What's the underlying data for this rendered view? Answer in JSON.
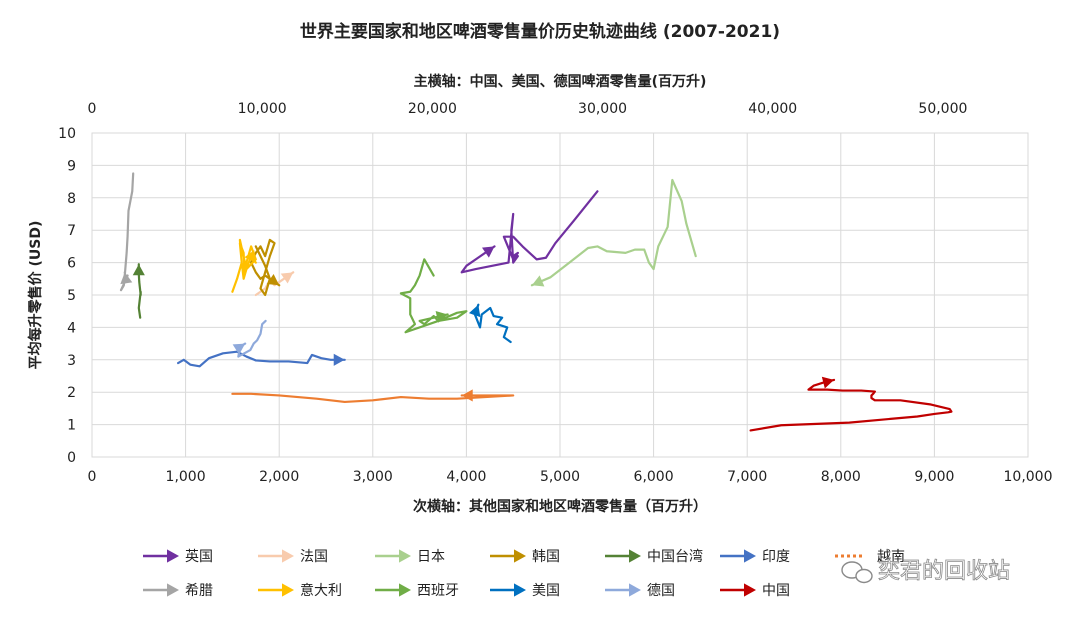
{
  "chart_data": {
    "type": "line",
    "title": "世界主要国家和地区啤酒零售量价历史轨迹曲线 (2007-2021)",
    "x2label": "主横轴：中国、美国、德国啤酒零售量(百万升)",
    "xlabel": "次横轴：其他国家和地区啤酒零售量（百万升）",
    "ylabel": "平均每升零售价 (USD)",
    "xlim": [
      0,
      10000
    ],
    "x2lim": [
      0,
      55000
    ],
    "ylim": [
      0,
      10
    ],
    "x_ticks": [
      "0",
      "1,000",
      "2,000",
      "3,000",
      "4,000",
      "5,000",
      "6,000",
      "7,000",
      "8,000",
      "9,000",
      "10,000"
    ],
    "x2_ticks": [
      "0",
      "10,000",
      "20,000",
      "30,000",
      "40,000",
      "50,000"
    ],
    "y_ticks": [
      "0",
      "1",
      "2",
      "3",
      "4",
      "5",
      "6",
      "7",
      "8",
      "9",
      "10"
    ],
    "grid": true,
    "legend_position": "bottom",
    "series": [
      {
        "name": "英国",
        "color": "#7030A0",
        "axis": "secondary",
        "points": [
          [
            5400,
            8.2
          ],
          [
            5150,
            7.3
          ],
          [
            4950,
            6.6
          ],
          [
            4850,
            6.15
          ],
          [
            4750,
            6.1
          ],
          [
            4600,
            6.5
          ],
          [
            4500,
            6.8
          ],
          [
            4400,
            6.8
          ],
          [
            4500,
            6.1
          ],
          [
            4550,
            6.3
          ],
          [
            4500,
            6.2
          ],
          [
            4550,
            6.2
          ],
          [
            4500,
            6.0
          ],
          [
            4480,
            7.0
          ],
          [
            4500,
            7.5
          ],
          [
            4450,
            6.0
          ],
          [
            4100,
            5.8
          ],
          [
            3950,
            5.7
          ],
          [
            4000,
            5.9
          ],
          [
            4150,
            6.2
          ],
          [
            4300,
            6.5
          ]
        ]
      },
      {
        "name": "法国",
        "color": "#F8CBAD",
        "axis": "secondary",
        "points": [
          [
            1750,
            5.0
          ],
          [
            1850,
            5.2
          ],
          [
            1900,
            5.45
          ],
          [
            1950,
            5.3
          ],
          [
            2000,
            5.4
          ],
          [
            2100,
            5.6
          ],
          [
            2150,
            5.7
          ]
        ]
      },
      {
        "name": "日本",
        "color": "#A9D08E",
        "axis": "secondary",
        "points": [
          [
            6450,
            6.2
          ],
          [
            6350,
            7.2
          ],
          [
            6300,
            7.9
          ],
          [
            6200,
            8.55
          ],
          [
            6150,
            7.1
          ],
          [
            6100,
            6.8
          ],
          [
            6050,
            6.5
          ],
          [
            6000,
            5.8
          ],
          [
            5950,
            6.0
          ],
          [
            5900,
            6.4
          ],
          [
            5800,
            6.4
          ],
          [
            5700,
            6.3
          ],
          [
            5500,
            6.35
          ],
          [
            5400,
            6.5
          ],
          [
            5300,
            6.45
          ],
          [
            5100,
            6.0
          ],
          [
            4900,
            5.55
          ],
          [
            4700,
            5.3
          ]
        ]
      },
      {
        "name": "韩国",
        "color": "#BF8F00",
        "axis": "secondary",
        "points": [
          [
            1750,
            6.5
          ],
          [
            1800,
            6.2
          ],
          [
            1850,
            5.9
          ],
          [
            1900,
            5.5
          ],
          [
            1850,
            5.0
          ],
          [
            1800,
            5.2
          ],
          [
            1850,
            5.7
          ],
          [
            1900,
            6.2
          ],
          [
            1950,
            6.6
          ],
          [
            1900,
            6.7
          ],
          [
            1850,
            6.2
          ],
          [
            1800,
            6.5
          ],
          [
            1750,
            6.3
          ],
          [
            1700,
            6.0
          ],
          [
            1750,
            5.7
          ],
          [
            1800,
            5.5
          ],
          [
            1850,
            5.6
          ],
          [
            1900,
            5.5
          ],
          [
            1950,
            5.4
          ],
          [
            2000,
            5.3
          ]
        ]
      },
      {
        "name": "中国台湾",
        "color": "#548235",
        "axis": "secondary",
        "points": [
          [
            515,
            4.3
          ],
          [
            500,
            4.6
          ],
          [
            520,
            5.1
          ],
          [
            520,
            5.0
          ],
          [
            505,
            5.4
          ],
          [
            500,
            5.65
          ],
          [
            500,
            5.95
          ]
        ]
      },
      {
        "name": "印度",
        "color": "#4472C4",
        "axis": "secondary",
        "points": [
          [
            920,
            2.9
          ],
          [
            980,
            3.0
          ],
          [
            1050,
            2.85
          ],
          [
            1150,
            2.8
          ],
          [
            1250,
            3.05
          ],
          [
            1400,
            3.2
          ],
          [
            1550,
            3.25
          ],
          [
            1650,
            3.1
          ],
          [
            1750,
            2.98
          ],
          [
            1900,
            2.95
          ],
          [
            2100,
            2.95
          ],
          [
            2300,
            2.9
          ],
          [
            2350,
            3.15
          ],
          [
            2450,
            3.05
          ],
          [
            2550,
            3.0
          ],
          [
            2700,
            3.0
          ]
        ]
      },
      {
        "name": "越南",
        "color": "#ED7D31",
        "axis": "secondary",
        "points": [
          [
            1500,
            1.95
          ],
          [
            1700,
            1.95
          ],
          [
            2000,
            1.9
          ],
          [
            2400,
            1.8
          ],
          [
            2700,
            1.7
          ],
          [
            3000,
            1.75
          ],
          [
            3300,
            1.85
          ],
          [
            3600,
            1.8
          ],
          [
            3900,
            1.8
          ],
          [
            4200,
            1.85
          ],
          [
            4500,
            1.9
          ],
          [
            4300,
            1.9
          ],
          [
            4050,
            1.9
          ],
          [
            3950,
            1.9
          ]
        ]
      },
      {
        "name": "希腊",
        "color": "#A5A5A5",
        "axis": "secondary",
        "points": [
          [
            440,
            8.75
          ],
          [
            430,
            8.2
          ],
          [
            410,
            7.9
          ],
          [
            390,
            7.6
          ],
          [
            380,
            6.8
          ],
          [
            370,
            6.3
          ],
          [
            350,
            5.6
          ],
          [
            340,
            5.3
          ],
          [
            310,
            5.15
          ],
          [
            350,
            5.4
          ],
          [
            380,
            5.6
          ],
          [
            360,
            5.5
          ],
          [
            350,
            5.7
          ]
        ]
      },
      {
        "name": "意大利",
        "color": "#FFC000",
        "axis": "secondary",
        "points": [
          [
            1500,
            5.1
          ],
          [
            1550,
            5.5
          ],
          [
            1600,
            6.0
          ],
          [
            1580,
            6.6
          ],
          [
            1620,
            6.3
          ],
          [
            1630,
            5.6
          ],
          [
            1650,
            6.0
          ],
          [
            1700,
            6.5
          ],
          [
            1750,
            6.1
          ],
          [
            1650,
            5.8
          ],
          [
            1580,
            6.7
          ],
          [
            1600,
            6.0
          ],
          [
            1620,
            5.5
          ],
          [
            1650,
            5.8
          ],
          [
            1700,
            6.2
          ],
          [
            1750,
            6.0
          ]
        ]
      },
      {
        "name": "西班牙",
        "color": "#70AD47",
        "axis": "secondary",
        "points": [
          [
            3650,
            5.6
          ],
          [
            3550,
            6.1
          ],
          [
            3500,
            5.6
          ],
          [
            3450,
            5.3
          ],
          [
            3400,
            5.1
          ],
          [
            3300,
            5.05
          ],
          [
            3400,
            4.9
          ],
          [
            3400,
            4.4
          ],
          [
            3450,
            4.1
          ],
          [
            3350,
            3.85
          ],
          [
            3700,
            4.2
          ],
          [
            3900,
            4.45
          ],
          [
            4000,
            4.5
          ],
          [
            3900,
            4.3
          ],
          [
            3700,
            4.2
          ],
          [
            3650,
            4.35
          ],
          [
            3550,
            4.1
          ],
          [
            3500,
            4.2
          ],
          [
            3800,
            4.4
          ]
        ]
      },
      {
        "name": "美国",
        "color": "#0070C0",
        "axis": "primary",
        "points": [
          [
            24600,
            3.55
          ],
          [
            24200,
            3.7
          ],
          [
            24400,
            4.0
          ],
          [
            23800,
            4.1
          ],
          [
            24100,
            4.3
          ],
          [
            23600,
            4.35
          ],
          [
            23400,
            4.6
          ],
          [
            22900,
            4.4
          ],
          [
            22800,
            4.0
          ],
          [
            22500,
            4.4
          ],
          [
            22700,
            4.7
          ]
        ]
      },
      {
        "name": "德国",
        "color": "#8EA9DB",
        "axis": "primary",
        "points": [
          [
            10200,
            4.2
          ],
          [
            10000,
            4.1
          ],
          [
            9900,
            3.8
          ],
          [
            9700,
            3.6
          ],
          [
            9500,
            3.5
          ],
          [
            9300,
            3.3
          ],
          [
            8600,
            3.1
          ],
          [
            8700,
            3.4
          ],
          [
            9000,
            3.5
          ]
        ]
      },
      {
        "name": "中国",
        "color": "#C00000",
        "axis": "primary",
        "points": [
          [
            38700,
            0.82
          ],
          [
            40500,
            0.98
          ],
          [
            44500,
            1.06
          ],
          [
            47000,
            1.18
          ],
          [
            48500,
            1.25
          ],
          [
            49500,
            1.33
          ],
          [
            50300,
            1.38
          ],
          [
            50500,
            1.4
          ],
          [
            50400,
            1.48
          ],
          [
            49300,
            1.62
          ],
          [
            47500,
            1.75
          ],
          [
            46000,
            1.75
          ],
          [
            45800,
            1.82
          ],
          [
            45800,
            1.9
          ],
          [
            45900,
            1.95
          ],
          [
            46000,
            2.02
          ],
          [
            45200,
            2.05
          ],
          [
            44100,
            2.05
          ],
          [
            43200,
            2.08
          ],
          [
            42100,
            2.08
          ],
          [
            42400,
            2.2
          ],
          [
            43000,
            2.3
          ],
          [
            43600,
            2.38
          ]
        ]
      }
    ]
  },
  "watermark": "奕君的回收站"
}
